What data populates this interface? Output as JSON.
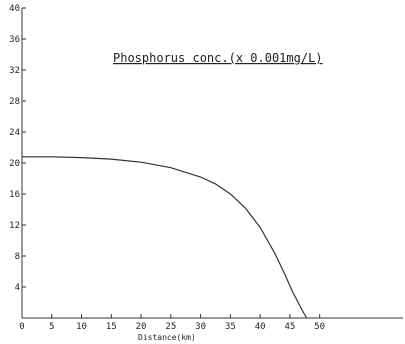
{
  "chart_data": {
    "type": "line",
    "title": "Phosphorus conc.(x 0.001mg/L)",
    "xlabel": "Distance(km)",
    "ylabel": "",
    "xlim": [
      0,
      64
    ],
    "ylim": [
      0,
      40
    ],
    "x_ticks": [
      0,
      5,
      10,
      15,
      20,
      25,
      30,
      35,
      40,
      45,
      50
    ],
    "y_ticks": [
      4,
      8,
      12,
      16,
      20,
      24,
      28,
      32,
      36,
      40
    ],
    "grid": false,
    "series": [
      {
        "x": [
          0,
          5,
          10,
          15,
          20,
          25,
          30,
          32.5,
          35,
          37.5,
          40,
          42.5,
          44,
          45.5,
          47,
          47.8
        ],
        "values": [
          20.8,
          20.8,
          20.7,
          20.5,
          20.1,
          19.4,
          18.2,
          17.3,
          16.0,
          14.2,
          11.7,
          8.3,
          5.9,
          3.3,
          1.1,
          0
        ]
      }
    ]
  }
}
